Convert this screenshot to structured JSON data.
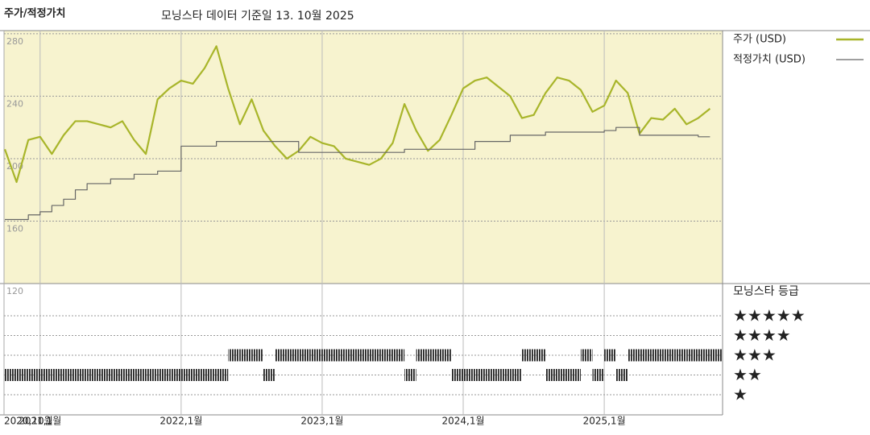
{
  "chart_data": {
    "type": "line",
    "title": "주가/적정가치",
    "subtitle": "모닝스타 데이터 기준일 13. 10월 2025",
    "x": [
      "2020-10",
      "2020-11",
      "2020-12",
      "2021-01",
      "2021-02",
      "2021-03",
      "2021-04",
      "2021-05",
      "2021-06",
      "2021-07",
      "2021-08",
      "2021-09",
      "2021-10",
      "2021-11",
      "2021-12",
      "2022-01",
      "2022-02",
      "2022-03",
      "2022-04",
      "2022-05",
      "2022-06",
      "2022-07",
      "2022-08",
      "2022-09",
      "2022-10",
      "2022-11",
      "2022-12",
      "2023-01",
      "2023-02",
      "2023-03",
      "2023-04",
      "2023-05",
      "2023-06",
      "2023-07",
      "2023-08",
      "2023-09",
      "2023-10",
      "2023-11",
      "2023-12",
      "2024-01",
      "2024-02",
      "2024-03",
      "2024-04",
      "2024-05",
      "2024-06",
      "2024-07",
      "2024-08",
      "2024-09",
      "2024-10",
      "2024-11",
      "2024-12",
      "2025-01",
      "2025-02",
      "2025-03",
      "2025-04",
      "2025-05",
      "2025-06",
      "2025-07",
      "2025-08",
      "2025-09",
      "2025-10"
    ],
    "xlim": [
      "2020-10",
      "2025-11"
    ],
    "xticks": [
      {
        "value": "2020-10",
        "label": "2020,10월"
      },
      {
        "value": "2021-01",
        "label": "2021,1월"
      },
      {
        "value": "2022-01",
        "label": "2022,1월"
      },
      {
        "value": "2023-01",
        "label": "2023,1월"
      },
      {
        "value": "2024-01",
        "label": "2024,1월"
      },
      {
        "value": "2025-01",
        "label": "2025,1월"
      }
    ],
    "ylim": [
      120,
      282
    ],
    "yticks": [
      120,
      160,
      200,
      240,
      280
    ],
    "series": [
      {
        "name": "주가 (USD)",
        "color": "#a8b52a",
        "values": [
          206,
          185,
          212,
          214,
          203,
          215,
          224,
          224,
          222,
          220,
          224,
          212,
          203,
          238,
          245,
          250,
          248,
          258,
          272,
          245,
          222,
          238,
          218,
          208,
          200,
          205,
          214,
          210,
          208,
          200,
          198,
          196,
          200,
          210,
          235,
          218,
          205,
          212,
          228,
          245,
          250,
          252,
          246,
          240,
          226,
          228,
          242,
          252,
          250,
          244,
          230,
          234,
          250,
          242,
          216,
          226,
          225,
          232,
          222,
          226,
          232
        ]
      },
      {
        "name": "적정가치 (USD)",
        "color": "#666666",
        "step": true,
        "values": [
          161,
          161,
          164,
          166,
          170,
          174,
          180,
          184,
          184,
          187,
          187,
          190,
          190,
          192,
          192,
          208,
          208,
          208,
          211,
          211,
          211,
          211,
          211,
          211,
          211,
          204,
          204,
          204,
          204,
          204,
          204,
          204,
          204,
          204,
          206,
          206,
          206,
          206,
          206,
          206,
          211,
          211,
          211,
          215,
          215,
          215,
          217,
          217,
          217,
          217,
          217,
          218,
          220,
          220,
          215,
          215,
          215,
          215,
          215,
          214,
          214
        ]
      }
    ],
    "ratings": {
      "title": "모닝스타 등급",
      "levels": [
        "★★★★★",
        "★★★★",
        "★★★",
        "★★",
        "★"
      ],
      "values": [
        2,
        2,
        2,
        2,
        2,
        2,
        2,
        2,
        2,
        2,
        2,
        2,
        2,
        2,
        2,
        2,
        2,
        2,
        2,
        3,
        3,
        3,
        2,
        3,
        3,
        3,
        3,
        3,
        3,
        3,
        3,
        3,
        3,
        3,
        2,
        3,
        3,
        3,
        2,
        2,
        2,
        2,
        2,
        2,
        3,
        3,
        2,
        2,
        2,
        3,
        2,
        3,
        2,
        3,
        3,
        3,
        3,
        3,
        3,
        3,
        3
      ]
    }
  }
}
